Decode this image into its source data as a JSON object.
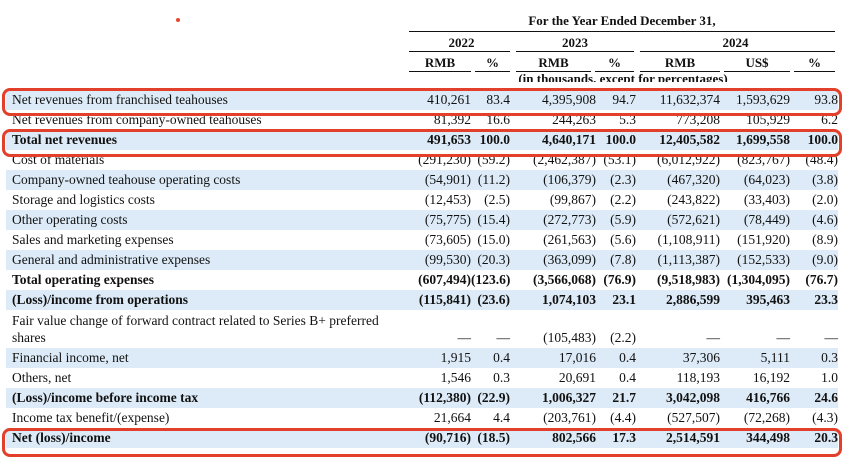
{
  "header": {
    "caption": "For the Year Ended December 31,",
    "years": [
      "2022",
      "2023",
      "2024"
    ],
    "columns": [
      "RMB",
      "%",
      "RMB",
      "%",
      "RMB",
      "US$",
      "%"
    ],
    "units": "(in thousands, except for percentages)"
  },
  "rows": [
    {
      "label": "Net revenues from franchised teahouses",
      "values": [
        "410,261",
        "83.4",
        "4,395,908",
        "94.7",
        "11,632,374",
        "1,593,629",
        "93.8"
      ]
    },
    {
      "label": "Net revenues from company-owned teahouses",
      "values": [
        "81,392",
        "16.6",
        "244,263",
        "5.3",
        "773,208",
        "105,929",
        "6.2"
      ]
    },
    {
      "label": "Total net revenues",
      "values": [
        "491,653",
        "100.0",
        "4,640,171",
        "100.0",
        "12,405,582",
        "1,699,558",
        "100.0"
      ]
    },
    {
      "label": "Cost of materials",
      "values": [
        "(291,230)",
        "(59.2)",
        "(2,462,387)",
        "(53.1)",
        "(6,012,922)",
        "(823,767)",
        "(48.4)"
      ]
    },
    {
      "label": "Company-owned teahouse operating costs",
      "values": [
        "(54,901)",
        "(11.2)",
        "(106,379)",
        "(2.3)",
        "(467,320)",
        "(64,023)",
        "(3.8)"
      ]
    },
    {
      "label": "Storage and logistics costs",
      "values": [
        "(12,453)",
        "(2.5)",
        "(99,867)",
        "(2.2)",
        "(243,822)",
        "(33,403)",
        "(2.0)"
      ]
    },
    {
      "label": "Other operating costs",
      "values": [
        "(75,775)",
        "(15.4)",
        "(272,773)",
        "(5.9)",
        "(572,621)",
        "(78,449)",
        "(4.6)"
      ]
    },
    {
      "label": "Sales and marketing expenses",
      "values": [
        "(73,605)",
        "(15.0)",
        "(261,563)",
        "(5.6)",
        "(1,108,911)",
        "(151,920)",
        "(8.9)"
      ]
    },
    {
      "label": "General and administrative expenses",
      "values": [
        "(99,530)",
        "(20.3)",
        "(363,099)",
        "(7.8)",
        "(1,113,387)",
        "(152,533)",
        "(9.0)"
      ]
    },
    {
      "label": "Total operating expenses",
      "values": [
        "(607,494)",
        "(123.6)",
        "(3,566,068)",
        "(76.9)",
        "(9,518,983)",
        "(1,304,095)",
        "(76.7)"
      ]
    },
    {
      "label": "(Loss)/income from operations",
      "values": [
        "(115,841)",
        "(23.6)",
        "1,074,103",
        "23.1",
        "2,886,599",
        "395,463",
        "23.3"
      ]
    },
    {
      "label": "Fair value change of forward contract related to Series B+ preferred shares",
      "values": [
        "—",
        "—",
        "(105,483)",
        "(2.2)",
        "—",
        "—",
        "—"
      ]
    },
    {
      "label": "Financial income, net",
      "values": [
        "1,915",
        "0.4",
        "17,016",
        "0.4",
        "37,306",
        "5,111",
        "0.3"
      ]
    },
    {
      "label": "Others, net",
      "values": [
        "1,546",
        "0.3",
        "20,691",
        "0.4",
        "118,193",
        "16,192",
        "1.0"
      ]
    },
    {
      "label": "(Loss)/income before income tax",
      "values": [
        "(112,380)",
        "(22.9)",
        "1,006,327",
        "21.7",
        "3,042,098",
        "416,766",
        "24.6"
      ]
    },
    {
      "label": "Income tax benefit/(expense)",
      "values": [
        "21,664",
        "4.4",
        "(203,761)",
        "(4.4)",
        "(527,507)",
        "(72,268)",
        "(4.3)"
      ]
    },
    {
      "label": "Net (loss)/income",
      "values": [
        "(90,716)",
        "(18.5)",
        "802,566",
        "17.3",
        "2,514,591",
        "344,498",
        "20.3"
      ]
    }
  ]
}
